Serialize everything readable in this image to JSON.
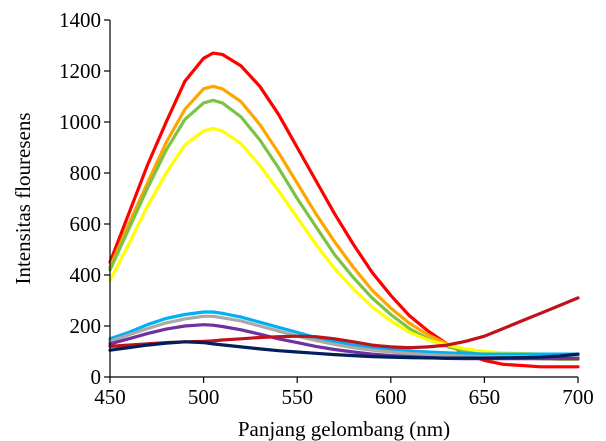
{
  "chart_data": {
    "type": "line",
    "title": "",
    "xlabel": "Panjang gelombang (nm)",
    "ylabel": "Intensitas flouresens",
    "xlim": [
      450,
      700
    ],
    "ylim": [
      0,
      1400
    ],
    "xticks": [
      "450",
      "500",
      "550",
      "600",
      "650",
      "700"
    ],
    "yticks": [
      "0",
      "200",
      "400",
      "600",
      "800",
      "1000",
      "1200",
      "1400"
    ],
    "grid": false,
    "legend": "none",
    "x": [
      450,
      460,
      470,
      480,
      490,
      500,
      505,
      510,
      520,
      530,
      540,
      550,
      560,
      570,
      580,
      590,
      600,
      610,
      620,
      630,
      640,
      650,
      660,
      670,
      680,
      690,
      700
    ],
    "series": [
      {
        "color": "#ff0000",
        "values": [
          450,
          640,
          830,
          1000,
          1160,
          1250,
          1270,
          1265,
          1220,
          1140,
          1030,
          900,
          770,
          640,
          520,
          410,
          320,
          240,
          180,
          130,
          90,
          65,
          50,
          45,
          40,
          40,
          40
        ]
      },
      {
        "color": "#ffa500",
        "values": [
          430,
          600,
          760,
          920,
          1050,
          1130,
          1140,
          1130,
          1080,
          990,
          880,
          760,
          640,
          530,
          430,
          340,
          270,
          210,
          165,
          130,
          105,
          90,
          80,
          75,
          72,
          70,
          70
        ]
      },
      {
        "color": "#7cc243",
        "values": [
          420,
          580,
          740,
          890,
          1010,
          1075,
          1085,
          1075,
          1020,
          930,
          820,
          700,
          590,
          480,
          390,
          310,
          245,
          190,
          150,
          120,
          100,
          88,
          80,
          75,
          72,
          70,
          70
        ]
      },
      {
        "color": "#ffff00",
        "values": [
          380,
          520,
          670,
          800,
          910,
          965,
          975,
          965,
          915,
          830,
          730,
          625,
          520,
          425,
          345,
          275,
          220,
          175,
          145,
          125,
          110,
          100,
          95,
          92,
          90,
          88,
          88
        ]
      },
      {
        "color": "#00b0f0",
        "values": [
          150,
          175,
          205,
          230,
          245,
          255,
          255,
          250,
          235,
          215,
          195,
          175,
          155,
          140,
          125,
          115,
          108,
          102,
          98,
          95,
          92,
          90,
          90,
          90,
          90,
          90,
          90
        ]
      },
      {
        "color": "#a9a9a9",
        "values": [
          140,
          165,
          190,
          212,
          228,
          238,
          238,
          232,
          220,
          200,
          180,
          160,
          143,
          128,
          115,
          105,
          98,
          92,
          88,
          85,
          82,
          80,
          80,
          80,
          80,
          80,
          80
        ]
      },
      {
        "color": "#7030a0",
        "values": [
          130,
          150,
          170,
          188,
          200,
          205,
          203,
          198,
          185,
          168,
          150,
          135,
          120,
          108,
          98,
          90,
          84,
          80,
          76,
          73,
          72,
          72,
          72,
          72,
          72,
          72,
          72
        ]
      },
      {
        "color": "#c0121a",
        "values": [
          120,
          125,
          130,
          135,
          138,
          140,
          142,
          145,
          150,
          155,
          158,
          160,
          158,
          150,
          138,
          125,
          118,
          115,
          118,
          125,
          140,
          160,
          190,
          220,
          250,
          280,
          310
        ]
      },
      {
        "color": "#001f5b",
        "values": [
          105,
          115,
          125,
          133,
          138,
          135,
          130,
          126,
          118,
          110,
          103,
          98,
          93,
          88,
          84,
          80,
          78,
          76,
          75,
          74,
          74,
          74,
          75,
          76,
          78,
          82,
          90
        ]
      }
    ]
  }
}
